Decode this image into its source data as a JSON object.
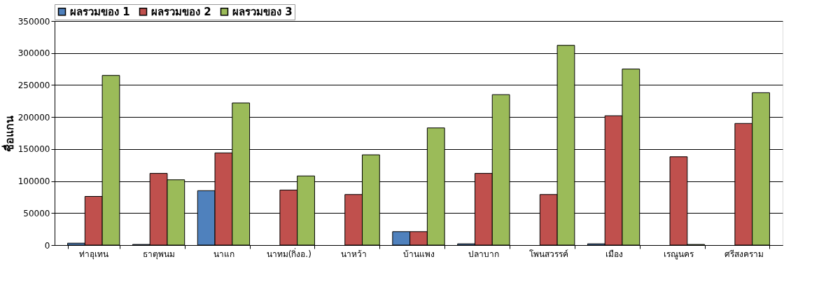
{
  "chart_data": {
    "type": "bar",
    "ylabel": "ชื่อแกน",
    "categories": [
      "ท่าอุเทน",
      "ธาตุพนม",
      "นาแก",
      "นาทม(กิ่งอ.)",
      "นาหว้า",
      "บ้านแพง",
      "ปลาบาก",
      "โพนสวรรค์",
      "เมือง",
      "เรณูนคร",
      "ศรีสงคราม"
    ],
    "series": [
      {
        "name": "ผลรวมของ 1",
        "color": "#4f81bd",
        "values": [
          3000,
          1000,
          85000,
          null,
          null,
          21000,
          2000,
          null,
          2000,
          null,
          null
        ]
      },
      {
        "name": "ผลรวมของ 2",
        "color": "#c0504d",
        "values": [
          76000,
          112000,
          144000,
          86000,
          79000,
          21000,
          112000,
          79000,
          202000,
          138000,
          190000
        ]
      },
      {
        "name": "ผลรวมของ 3",
        "color": "#9bbb59",
        "values": [
          265000,
          102000,
          222000,
          108000,
          141000,
          183000,
          235000,
          312000,
          275000,
          1000,
          238000
        ]
      }
    ],
    "ylim": [
      0,
      350000
    ],
    "yticks": [
      0,
      50000,
      100000,
      150000,
      200000,
      250000,
      300000,
      350000
    ],
    "grid": "y",
    "legend": "top left"
  }
}
